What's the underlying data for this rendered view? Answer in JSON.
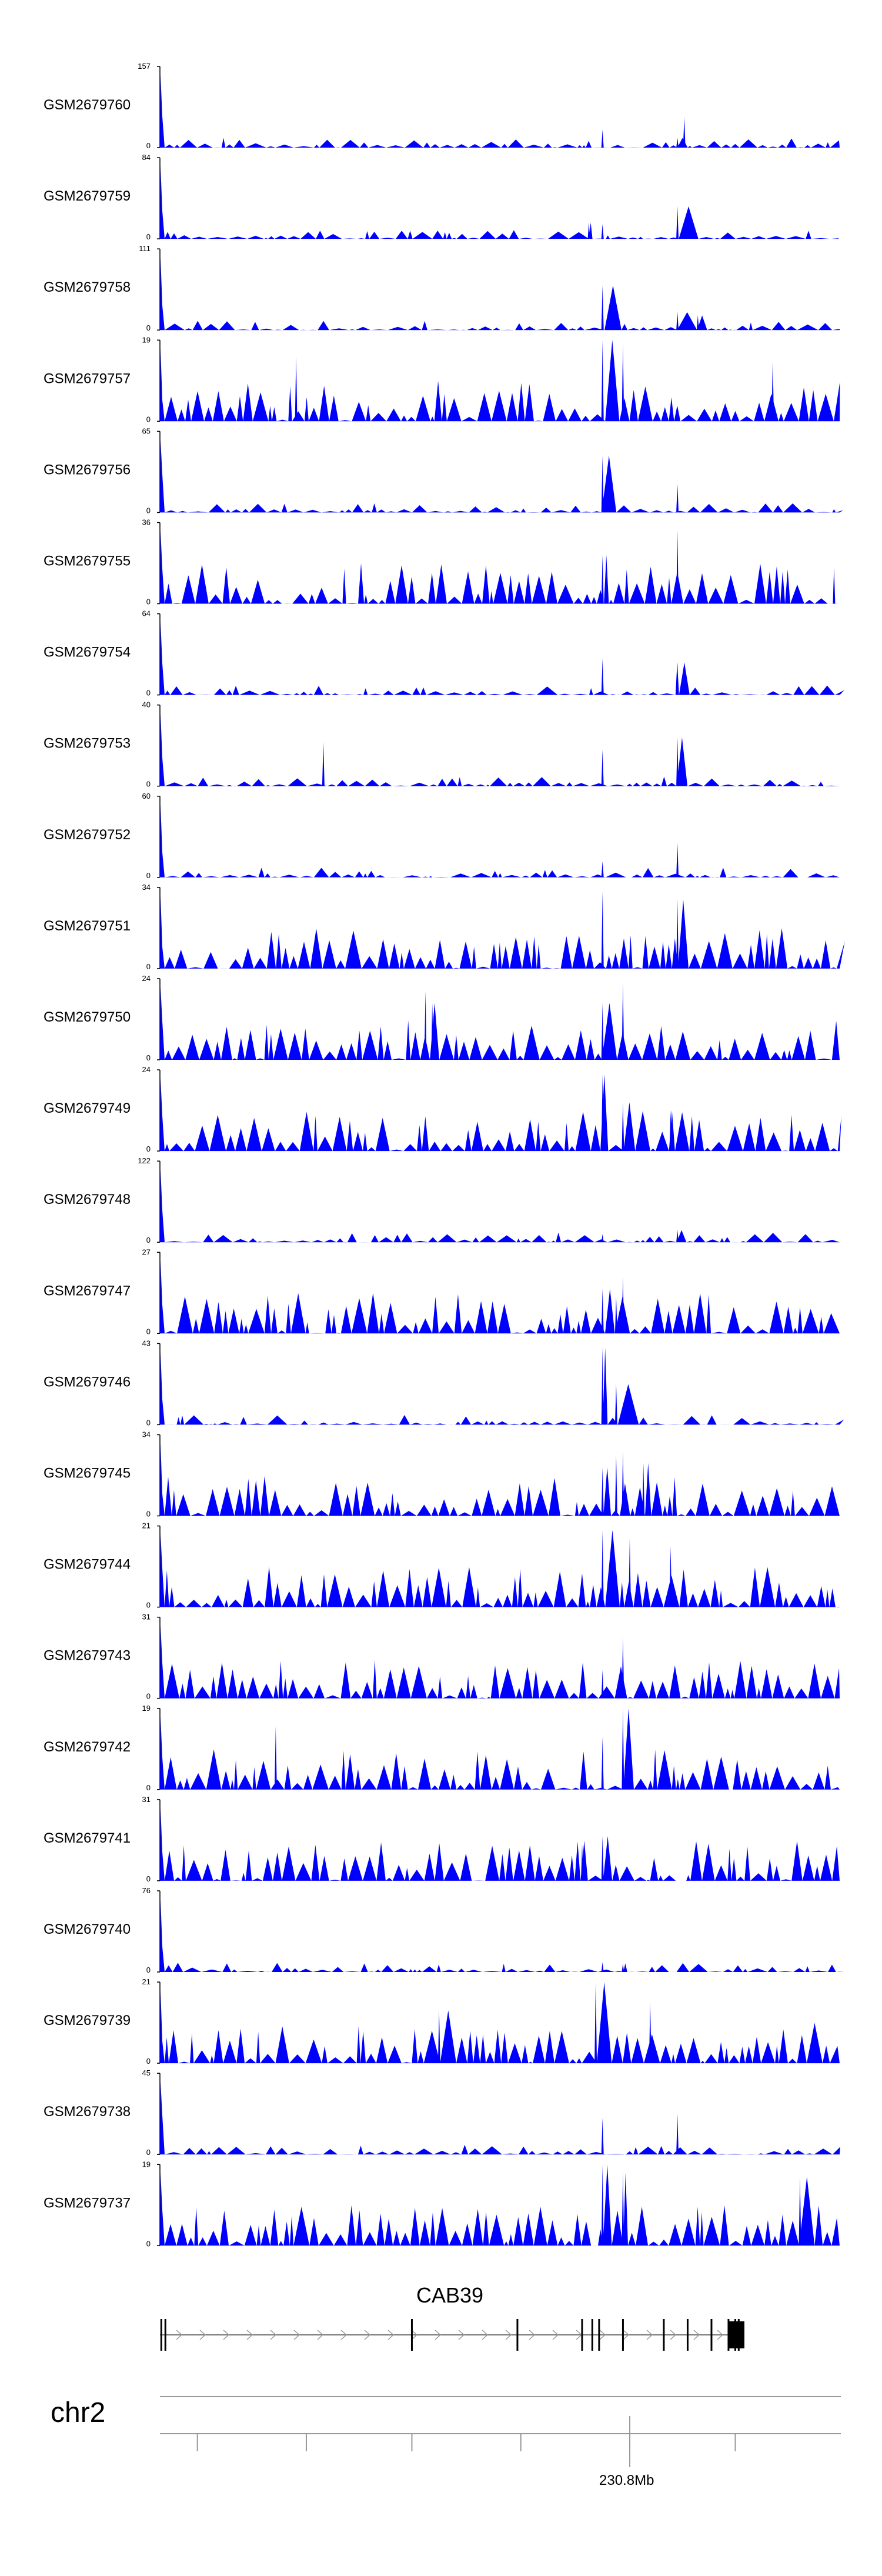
{
  "chart_data": {
    "type": "area",
    "fill_color": "#0000ff",
    "tracks": [
      {
        "name": "GSM2679760",
        "max": "157",
        "min": "0",
        "seed": 1,
        "peaks": [
          [
            0.65,
            0.22
          ],
          [
            0.77,
            0.38
          ],
          [
            0.76,
            0.12
          ]
        ]
      },
      {
        "name": "GSM2679759",
        "max": "84",
        "min": "0",
        "seed": 2,
        "peaks": [
          [
            0.65,
            0.18
          ],
          [
            0.76,
            0.4
          ],
          [
            0.63,
            0.2
          ]
        ]
      },
      {
        "name": "GSM2679758",
        "max": "111",
        "min": "0",
        "seed": 3,
        "peaks": [
          [
            0.65,
            0.55
          ],
          [
            0.76,
            0.22
          ],
          [
            0.79,
            0.18
          ]
        ]
      },
      {
        "name": "GSM2679757",
        "max": "19",
        "min": "0",
        "seed": 4,
        "peaks": [
          [
            0.2,
            0.8
          ],
          [
            0.65,
            1.0
          ],
          [
            0.68,
            0.95
          ],
          [
            0.9,
            0.75
          ]
        ]
      },
      {
        "name": "GSM2679756",
        "max": "65",
        "min": "0",
        "seed": 5,
        "peaks": [
          [
            0.65,
            0.7
          ],
          [
            0.76,
            0.35
          ]
        ]
      },
      {
        "name": "GSM2679755",
        "max": "36",
        "min": "0",
        "seed": 6,
        "peaks": [
          [
            0.76,
            0.9
          ],
          [
            0.65,
            0.6
          ],
          [
            0.99,
            0.45
          ]
        ]
      },
      {
        "name": "GSM2679754",
        "max": "64",
        "min": "0",
        "seed": 7,
        "peaks": [
          [
            0.65,
            0.45
          ],
          [
            0.76,
            0.4
          ]
        ]
      },
      {
        "name": "GSM2679753",
        "max": "40",
        "min": "0",
        "seed": 8,
        "peaks": [
          [
            0.24,
            0.55
          ],
          [
            0.65,
            0.45
          ],
          [
            0.76,
            0.6
          ]
        ]
      },
      {
        "name": "GSM2679752",
        "max": "60",
        "min": "0",
        "seed": 9,
        "peaks": [
          [
            0.76,
            0.42
          ],
          [
            0.65,
            0.2
          ]
        ]
      },
      {
        "name": "GSM2679751",
        "max": "34",
        "min": "0",
        "seed": 10,
        "peaks": [
          [
            0.65,
            0.95
          ],
          [
            0.76,
            0.85
          ],
          [
            0.55,
            0.3
          ]
        ]
      },
      {
        "name": "GSM2679750",
        "max": "24",
        "min": "0",
        "seed": 11,
        "peaks": [
          [
            0.39,
            0.85
          ],
          [
            0.4,
            0.7
          ],
          [
            0.68,
            0.95
          ],
          [
            0.65,
            0.7
          ]
        ]
      },
      {
        "name": "GSM2679749",
        "max": "24",
        "min": "0",
        "seed": 12,
        "peaks": [
          [
            0.65,
            0.95
          ],
          [
            0.68,
            0.6
          ],
          [
            0.75,
            0.5
          ]
        ]
      },
      {
        "name": "GSM2679748",
        "max": "122",
        "min": "0",
        "seed": 13,
        "peaks": [
          [
            0.65,
            0.1
          ],
          [
            0.76,
            0.15
          ]
        ]
      },
      {
        "name": "GSM2679747",
        "max": "27",
        "min": "0",
        "seed": 14,
        "peaks": [
          [
            0.68,
            0.7
          ],
          [
            0.67,
            0.45
          ],
          [
            0.65,
            0.55
          ]
        ]
      },
      {
        "name": "GSM2679746",
        "max": "43",
        "min": "0",
        "seed": 15,
        "peaks": [
          [
            0.65,
            0.95
          ],
          [
            0.67,
            0.5
          ]
        ]
      },
      {
        "name": "GSM2679745",
        "max": "34",
        "min": "0",
        "seed": 16,
        "peaks": [
          [
            0.68,
            0.8
          ],
          [
            0.67,
            0.75
          ],
          [
            0.65,
            0.6
          ],
          [
            0.71,
            0.65
          ]
        ]
      },
      {
        "name": "GSM2679744",
        "max": "21",
        "min": "0",
        "seed": 17,
        "peaks": [
          [
            0.65,
            0.95
          ],
          [
            0.69,
            0.85
          ],
          [
            0.75,
            0.75
          ]
        ]
      },
      {
        "name": "GSM2679743",
        "max": "31",
        "min": "0",
        "seed": 18,
        "peaks": [
          [
            0.68,
            0.75
          ],
          [
            0.65,
            0.35
          ]
        ]
      },
      {
        "name": "GSM2679742",
        "max": "19",
        "min": "0",
        "seed": 19,
        "peaks": [
          [
            0.68,
            1.0
          ],
          [
            0.17,
            0.78
          ],
          [
            0.65,
            0.65
          ]
        ]
      },
      {
        "name": "GSM2679741",
        "max": "31",
        "min": "0",
        "seed": 20,
        "peaks": [
          [
            0.65,
            0.55
          ],
          [
            0.62,
            0.45
          ]
        ]
      },
      {
        "name": "GSM2679740",
        "max": "76",
        "min": "0",
        "seed": 21,
        "peaks": [
          [
            0.65,
            0.12
          ],
          [
            0.68,
            0.1
          ]
        ]
      },
      {
        "name": "GSM2679739",
        "max": "21",
        "min": "0",
        "seed": 22,
        "peaks": [
          [
            0.64,
            1.0
          ],
          [
            0.41,
            0.65
          ],
          [
            0.72,
            0.75
          ]
        ]
      },
      {
        "name": "GSM2679738",
        "max": "45",
        "min": "0",
        "seed": 23,
        "peaks": [
          [
            0.65,
            0.45
          ],
          [
            0.76,
            0.5
          ]
        ]
      },
      {
        "name": "GSM2679737",
        "max": "19",
        "min": "0",
        "seed": 24,
        "peaks": [
          [
            0.65,
            1.0
          ],
          [
            0.68,
            0.9
          ],
          [
            0.94,
            0.85
          ]
        ]
      }
    ],
    "gene": {
      "label": "CAB39",
      "strand": ">",
      "exons": [
        0.002,
        0.008,
        0.37,
        0.525,
        0.62,
        0.635,
        0.645,
        0.68,
        0.74,
        0.775,
        0.81,
        0.835,
        0.845,
        0.85
      ]
    },
    "chromosome": {
      "label": "chr2",
      "coordinate_label": "230.8Mb",
      "coordinate_tick": 0.69,
      "ticks": [
        0.055,
        0.215,
        0.37,
        0.53,
        0.69,
        0.845
      ]
    }
  }
}
